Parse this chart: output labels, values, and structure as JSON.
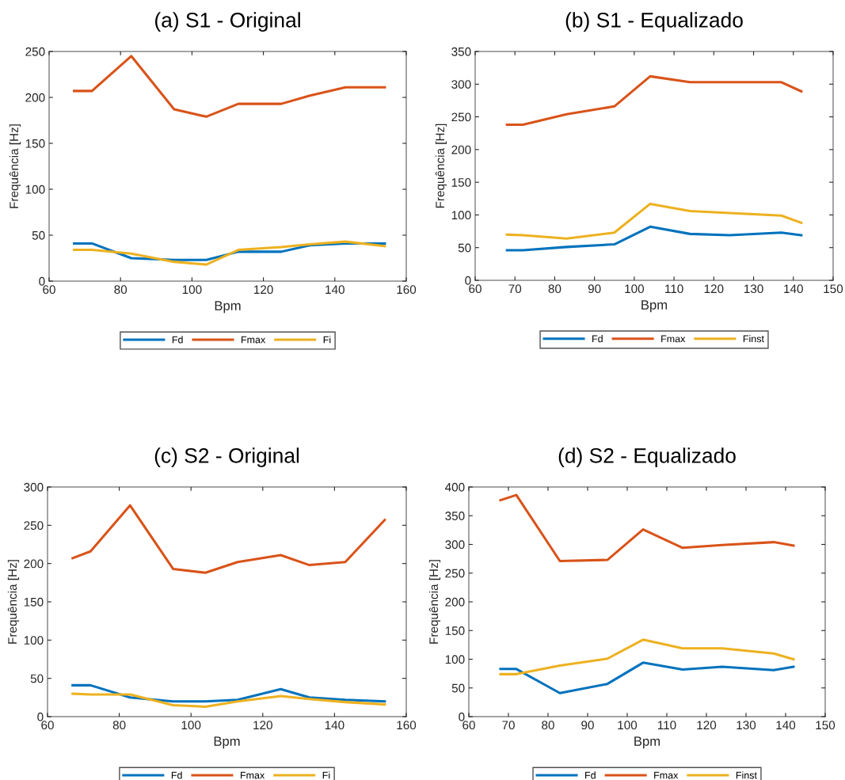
{
  "chart_data": [
    {
      "type": "line",
      "title": "(a) S1 - Original",
      "xlabel": "Bpm",
      "ylabel": "Frequência [Hz]",
      "x": [
        67,
        72,
        83,
        95,
        104,
        113,
        125,
        133,
        143,
        154
      ],
      "xlim": [
        60,
        160
      ],
      "xticks": [
        60,
        80,
        100,
        120,
        140,
        160
      ],
      "ylim": [
        0,
        250
      ],
      "yticks": [
        0,
        50,
        100,
        150,
        200,
        250
      ],
      "grid": false,
      "legend": "bottom",
      "series": [
        {
          "name": "Fd",
          "color": "#0072bd",
          "values": [
            41,
            41,
            25,
            23,
            23,
            32,
            32,
            39,
            41,
            41
          ]
        },
        {
          "name": "Fmax",
          "color": "#d95319",
          "values": [
            207,
            207,
            245,
            187,
            179,
            193,
            193,
            202,
            211,
            211
          ]
        },
        {
          "name": "Fi",
          "color": "#edb120",
          "values": [
            34,
            34,
            30,
            21,
            18,
            34,
            37,
            40,
            43,
            38
          ]
        }
      ]
    },
    {
      "type": "line",
      "title": "(b) S1 - Equalizado",
      "xlabel": "Bpm",
      "ylabel": "Frequência [Hz]",
      "x": [
        68,
        72,
        83,
        95,
        104,
        114,
        124,
        137,
        142
      ],
      "xlim": [
        60,
        150
      ],
      "xticks": [
        60,
        70,
        80,
        90,
        100,
        110,
        120,
        130,
        140,
        150
      ],
      "ylim": [
        0,
        350
      ],
      "yticks": [
        0,
        50,
        100,
        150,
        200,
        250,
        300,
        350
      ],
      "grid": false,
      "legend": "bottom",
      "series": [
        {
          "name": "Fd",
          "color": "#0072bd",
          "values": [
            46,
            46,
            51,
            55,
            82,
            71,
            69,
            73,
            69
          ]
        },
        {
          "name": "Fmax",
          "color": "#d95319",
          "values": [
            238,
            238,
            254,
            266,
            312,
            303,
            303,
            303,
            289
          ]
        },
        {
          "name": "Finst",
          "color": "#edb120",
          "values": [
            70,
            69,
            64,
            73,
            117,
            106,
            103,
            99,
            88
          ]
        }
      ]
    },
    {
      "type": "line",
      "title": "(c) S2 - Original",
      "xlabel": "Bpm",
      "ylabel": "Frequência [Hz]",
      "x": [
        67,
        72,
        83,
        95,
        104,
        113,
        125,
        133,
        143,
        154
      ],
      "xlim": [
        60,
        160
      ],
      "xticks": [
        60,
        80,
        100,
        120,
        140,
        160
      ],
      "ylim": [
        0,
        300
      ],
      "yticks": [
        0,
        50,
        100,
        150,
        200,
        250,
        300
      ],
      "grid": false,
      "legend": "bottom",
      "series": [
        {
          "name": "Fd",
          "color": "#0072bd",
          "values": [
            41,
            41,
            25,
            20,
            20,
            22,
            36,
            25,
            22,
            20
          ]
        },
        {
          "name": "Fmax",
          "color": "#d95319",
          "values": [
            207,
            216,
            276,
            193,
            188,
            202,
            211,
            198,
            202,
            257
          ]
        },
        {
          "name": "Fi",
          "color": "#edb120",
          "values": [
            30,
            29,
            29,
            15,
            13,
            20,
            27,
            23,
            19,
            16
          ]
        }
      ]
    },
    {
      "type": "line",
      "title": "(d) S2 - Equalizado",
      "xlabel": "Bpm",
      "ylabel": "Frequência [Hz]",
      "x": [
        68,
        72,
        83,
        95,
        104,
        114,
        124,
        137,
        142
      ],
      "xlim": [
        60,
        150
      ],
      "xticks": [
        60,
        70,
        80,
        90,
        100,
        110,
        120,
        130,
        140,
        150
      ],
      "ylim": [
        0,
        400
      ],
      "yticks": [
        0,
        50,
        100,
        150,
        200,
        250,
        300,
        350,
        400
      ],
      "grid": false,
      "legend": "bottom",
      "series": [
        {
          "name": "Fd",
          "color": "#0072bd",
          "values": [
            83,
            83,
            41,
            57,
            94,
            82,
            87,
            81,
            87
          ]
        },
        {
          "name": "Fmax",
          "color": "#d95319",
          "values": [
            377,
            386,
            271,
            273,
            326,
            294,
            299,
            304,
            298
          ]
        },
        {
          "name": "Finst",
          "color": "#edb120",
          "values": [
            74,
            74,
            89,
            101,
            134,
            119,
            119,
            110,
            100
          ]
        }
      ]
    }
  ]
}
